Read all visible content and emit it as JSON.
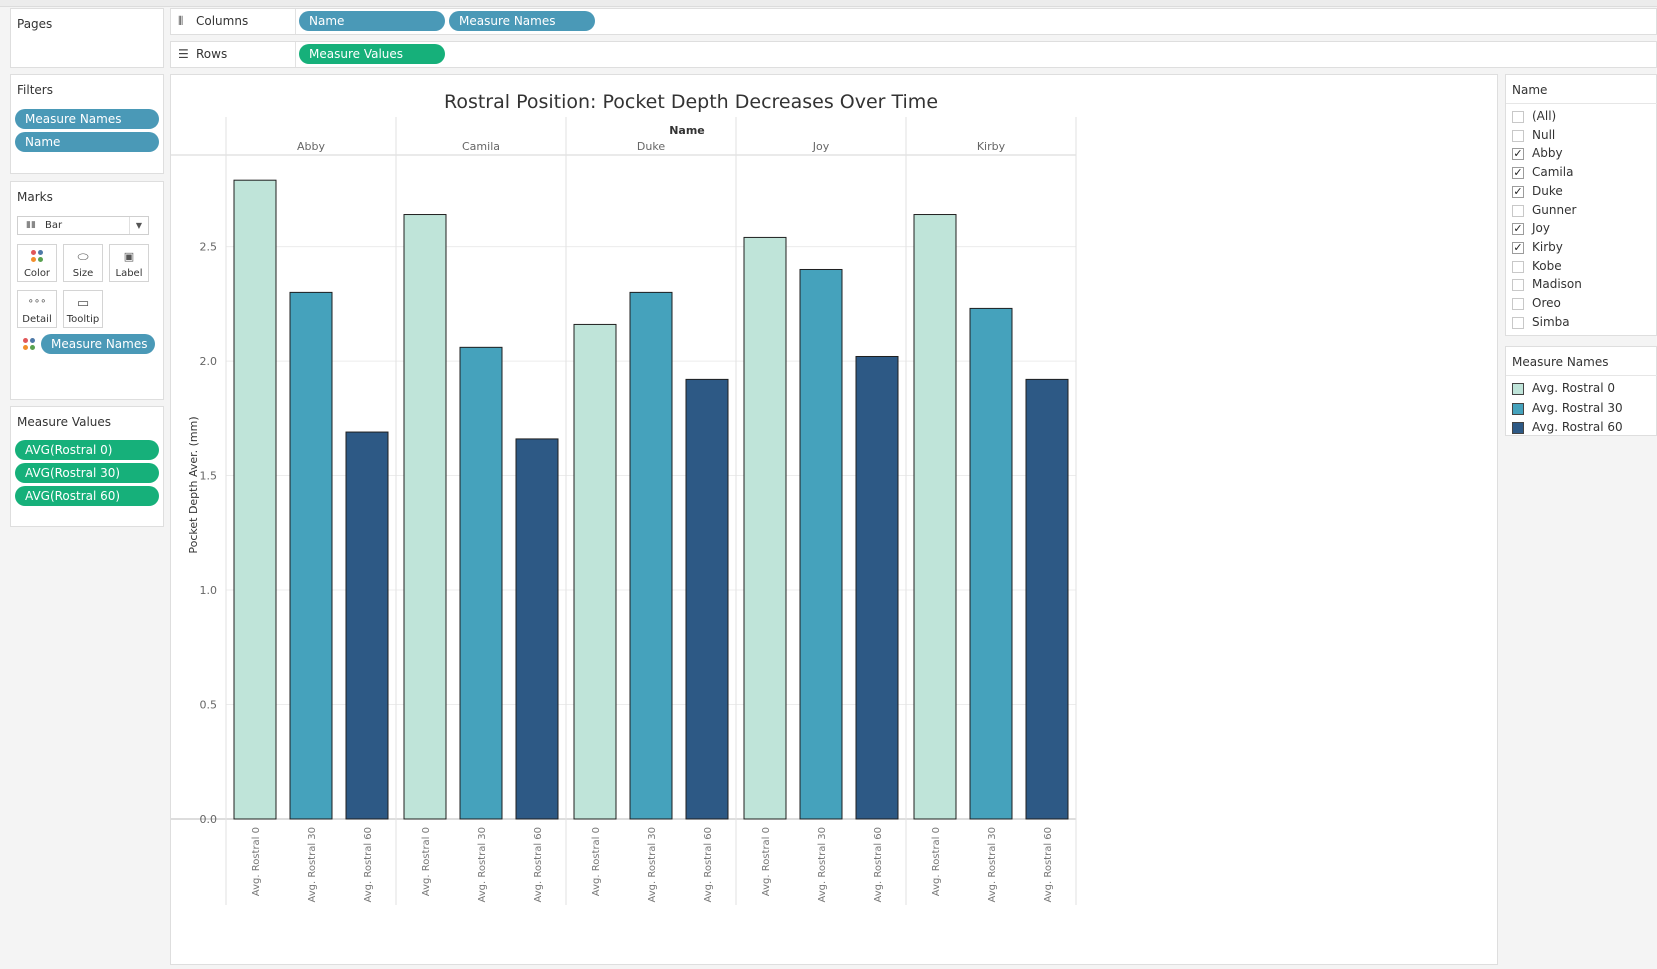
{
  "shelves": {
    "pages_title": "Pages",
    "columns_label": "Columns",
    "columns_pills": [
      "Name",
      "Measure Names"
    ],
    "rows_label": "Rows",
    "rows_pills": [
      "Measure Values"
    ]
  },
  "filters": {
    "title": "Filters",
    "pills": [
      "Measure Names",
      "Name"
    ]
  },
  "marks": {
    "title": "Marks",
    "mark_type": "Bar",
    "buttons": [
      "Color",
      "Size",
      "Label",
      "Detail",
      "Tooltip"
    ],
    "color_pill": "Measure Names"
  },
  "measure_values": {
    "title": "Measure Values",
    "pills": [
      "AVG(Rostral 0)",
      "AVG(Rostral 30)",
      "AVG(Rostral 60)"
    ]
  },
  "name_filter": {
    "title": "Name",
    "items": [
      {
        "label": "(All)",
        "checked": false
      },
      {
        "label": "Null",
        "checked": false
      },
      {
        "label": "Abby",
        "checked": true
      },
      {
        "label": "Camila",
        "checked": true
      },
      {
        "label": "Duke",
        "checked": true
      },
      {
        "label": "Gunner",
        "checked": false
      },
      {
        "label": "Joy",
        "checked": true
      },
      {
        "label": "Kirby",
        "checked": true
      },
      {
        "label": "Kobe",
        "checked": false
      },
      {
        "label": "Madison",
        "checked": false
      },
      {
        "label": "Oreo",
        "checked": false
      },
      {
        "label": "Simba",
        "checked": false
      }
    ]
  },
  "measure_legend": {
    "title": "Measure Names",
    "items": [
      {
        "label": "Avg. Rostral 0",
        "color": "#bfe4d9"
      },
      {
        "label": "Avg. Rostral 30",
        "color": "#45a2bc"
      },
      {
        "label": "Avg. Rostral 60",
        "color": "#2d5985"
      }
    ]
  },
  "chart_data": {
    "type": "bar",
    "title": "Rostral Position: Pocket Depth Decreases Over Time",
    "xlabel": "Name",
    "ylabel": "Pocket Depth Aver. (mm)",
    "categories": [
      "Abby",
      "Camila",
      "Duke",
      "Joy",
      "Kirby"
    ],
    "series": [
      {
        "name": "Avg. Rostral 0",
        "color": "#bfe4d9",
        "values": [
          2.79,
          2.64,
          2.16,
          2.54,
          2.64
        ]
      },
      {
        "name": "Avg. Rostral 30",
        "color": "#45a2bc",
        "values": [
          2.3,
          2.06,
          2.3,
          2.4,
          2.23
        ]
      },
      {
        "name": "Avg. Rostral 60",
        "color": "#2d5985",
        "values": [
          1.69,
          1.66,
          1.92,
          2.02,
          1.92
        ]
      }
    ],
    "ylim": [
      0,
      2.9
    ],
    "yticks": [
      "0.0",
      "0.5",
      "1.0",
      "1.5",
      "2.0",
      "2.5"
    ],
    "ytick_values": [
      0,
      0.5,
      1.0,
      1.5,
      2.0,
      2.5
    ],
    "grid": true,
    "legend": "right"
  }
}
